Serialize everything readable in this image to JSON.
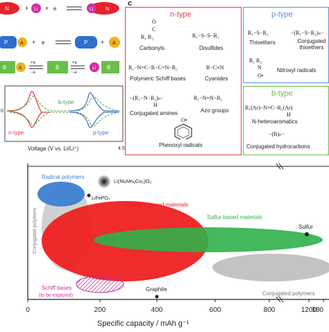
{
  "panel_labels": {
    "c": "c"
  },
  "reactions": {
    "row1": {
      "left_a": "N",
      "left_b": "Li",
      "left_b_sup": "+",
      "plus1": "+",
      "plus2": "+",
      "electron": "e",
      "electron_sup": "−",
      "right_a": "Li",
      "right_b": "N",
      "right_b_sup": "−"
    },
    "row2": {
      "left_a": "P",
      "left_a_sup": "+",
      "left_b": "A",
      "left_b_sup": "−",
      "plus1": "+",
      "electron": "e",
      "electron_sup": "−",
      "right_a": "P",
      "plus2": "+",
      "right_b": "A",
      "right_b_sup": "−"
    },
    "row3": {
      "left_a": "B",
      "left_b": "A",
      "right_a": "B",
      "right_b": "Li",
      "e1": "+e",
      "e2": "−e",
      "e3": "+e",
      "e4": "−e"
    }
  },
  "cv_plot": {
    "ylabel_tick": "0",
    "xlabel": "Voltage (V vs. Li/Li⁺)",
    "xmax_tick": "4.5",
    "legend": [
      "b-type",
      "n-type",
      "p-type"
    ],
    "colors": {
      "b": "#3aa63a",
      "n": "#e83a3a",
      "p": "#4a78c8"
    }
  },
  "ntype_box": {
    "title": "n-type",
    "color": "#e04040",
    "items": [
      "Carbonyls",
      "Disulfides",
      "Polymeric Schiff bases",
      "Cyanides",
      "Conjugated amines",
      "Azo groups",
      "Phenoxyl radicals"
    ],
    "formulas": {
      "disulfide": "R₁−S−S−R₂",
      "cyanide": "R−C≡N",
      "azo": "R₁−N=N−R₂",
      "schiff": "R₁−N=C−R−C=N−R₂",
      "carbonyl_o": "O",
      "carbonyl_r": "R₁   R₂",
      "amine": "−(R₁−N−R₂)ₙ−",
      "amine_h": "H",
      "phenoxyl_o": "O•"
    }
  },
  "ptype_box": {
    "title": "p-type",
    "color": "#5a8fe0",
    "items": [
      "Thioethers",
      "Conjugated thioethers",
      "Nitroxyl radicals"
    ],
    "formulas": {
      "thioether": "R₁−S−R₂",
      "conj_thioether": "−(R₁−S−R₂)ₙ−",
      "nitroxyl_r": "R₁   R₂",
      "nitroxyl_n": "N",
      "nitroxyl_o": "O•"
    }
  },
  "btype_box": {
    "title": "b-type",
    "color": "#6abf4b",
    "items": [
      "N-heteroaromatics",
      "Conjugated hydrocarbons"
    ],
    "formulas": {
      "n_hetero": "R₁(Ar)−N=C−R₂(Ar)",
      "n_hetero_h": "H",
      "conj_hc": "−(R)ₙ−"
    }
  },
  "bubble_chart": {
    "xlabel": "Specific capacity / mAh g⁻¹",
    "xticks": [
      "0",
      "200",
      "400",
      "600",
      "800",
      "1200",
      "180"
    ],
    "labels": {
      "radical": "Radical polymers",
      "nmc": "Li(Ni",
      "nmc_full": "Li(NiₓMnᵧCo₂)O₂",
      "lfp": "LiFePO₄",
      "conj_left": "Conjugated polymers",
      "carbonyl": "Carbonyl-based materials",
      "sulfur_based": "Sulfur-based materials",
      "sulfur": "Sulfur",
      "schiff1": "Schiff bases",
      "schiff2": "(to be explored)",
      "graphite": "Graphite",
      "conj_right": "Conjugated polymers"
    },
    "colors": {
      "radical": "#3c7fd1",
      "carbonyl": "#ee2020",
      "sulfur": "#2fb04a",
      "conj": "#bdbdbd",
      "schiff": "#d12fa0"
    }
  }
}
